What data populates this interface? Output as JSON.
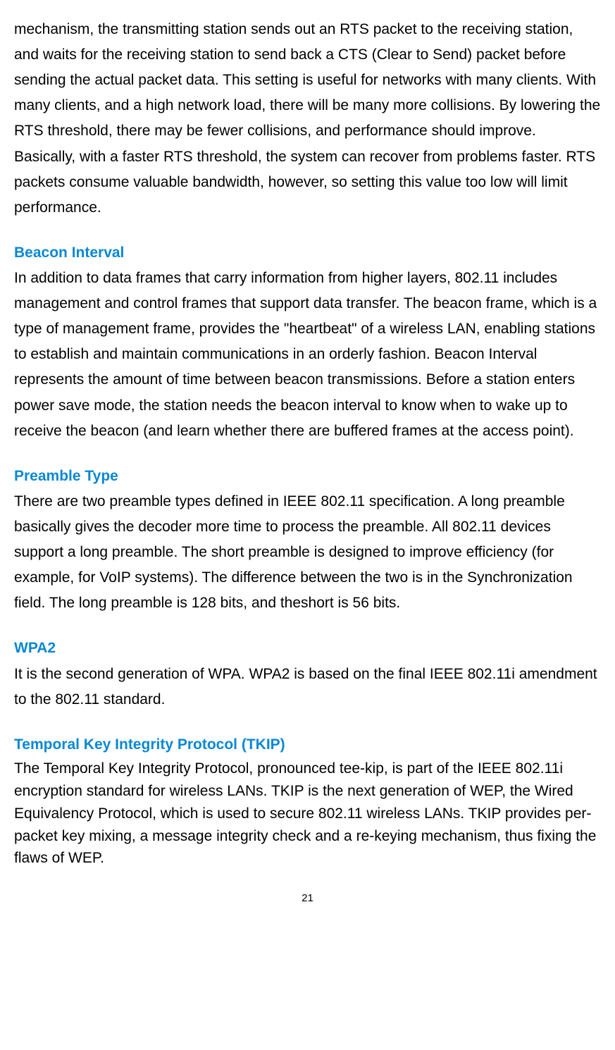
{
  "intro_paragraph": "mechanism, the transmitting station sends out an RTS packet to the receiving station, and waits for the receiving station to send back a CTS (Clear to Send) packet before sending the actual packet data. This setting is useful for networks with many clients. With many clients, and a high network load, there will be many more collisions. By lowering the RTS threshold, there may be fewer collisions, and performance should improve. Basically, with a faster RTS threshold, the system can recover from problems faster. RTS packets consume valuable bandwidth, however, so setting this value too low will limit performance.",
  "sections": [
    {
      "heading": "Beacon Interval",
      "body": "In addition to data frames that carry information from higher layers, 802.11 includes management and control frames that support data transfer. The beacon frame, which is a type of management frame, provides the \"heartbeat\" of a wireless LAN, enabling stations to establish and maintain communications in an orderly fashion. Beacon Interval represents the amount of time between beacon transmissions. Before a station enters power save mode, the station needs the beacon interval to know when to wake up to receive the beacon (and learn whether there are buffered frames at the access point)."
    },
    {
      "heading": "Preamble Type",
      "body": "There are two preamble types defined in IEEE 802.11 specification. A long preamble basically gives the decoder more time to process the preamble. All 802.11 devices support a long preamble. The short preamble is designed to improve efficiency (for example, for VoIP systems). The difference between the two is in the Synchronization field. The long preamble is 128 bits, and theshort is 56 bits."
    },
    {
      "heading": "WPA2",
      "body": "It is the second generation of WPA. WPA2 is based on the final IEEE 802.11i amendment to the 802.11 standard."
    },
    {
      "heading": "Temporal Key Integrity Protocol (TKIP)",
      "body": "The Temporal Key Integrity Protocol, pronounced tee-kip, is part of the IEEE 802.11i encryption standard for wireless LANs. TKIP is the next generation of WEP, the Wired Equivalency Protocol, which is used to secure 802.11 wireless LANs. TKIP provides per-packet key mixing, a message integrity check and a re-keying mechanism, thus fixing the flaws of WEP."
    }
  ],
  "page_number": "21",
  "styling": {
    "heading_color": "#0988d4",
    "body_color": "#000000",
    "background_color": "#ffffff",
    "body_fontsize": 21,
    "heading_fontsize": 21,
    "pagenum_fontsize": 15
  }
}
